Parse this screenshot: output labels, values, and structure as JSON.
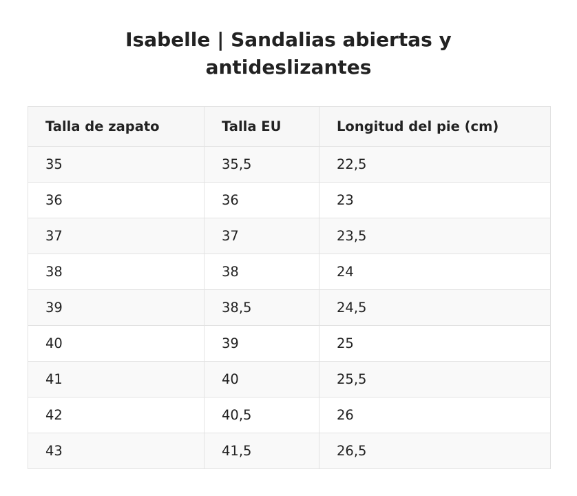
{
  "title_line1": "Isabelle | Sandalias abiertas y",
  "title_line2": "antideslizantes",
  "table": {
    "headers": [
      "Talla de zapato",
      "Talla EU",
      "Longitud del pie (cm)"
    ],
    "rows": [
      [
        "35",
        "35,5",
        "22,5"
      ],
      [
        "36",
        "36",
        "23"
      ],
      [
        "37",
        "37",
        "23,5"
      ],
      [
        "38",
        "38",
        "24"
      ],
      [
        "39",
        "38,5",
        "24,5"
      ],
      [
        "40",
        "39",
        "25"
      ],
      [
        "41",
        "40",
        "25,5"
      ],
      [
        "42",
        "40,5",
        "26"
      ],
      [
        "43",
        "41,5",
        "26,5"
      ]
    ]
  },
  "colors": {
    "text": "#222222",
    "border": "#e2e2e2",
    "header_bg": "#f7f7f7",
    "stripe_bg": "#f9f9f9",
    "row_bg": "#ffffff"
  }
}
